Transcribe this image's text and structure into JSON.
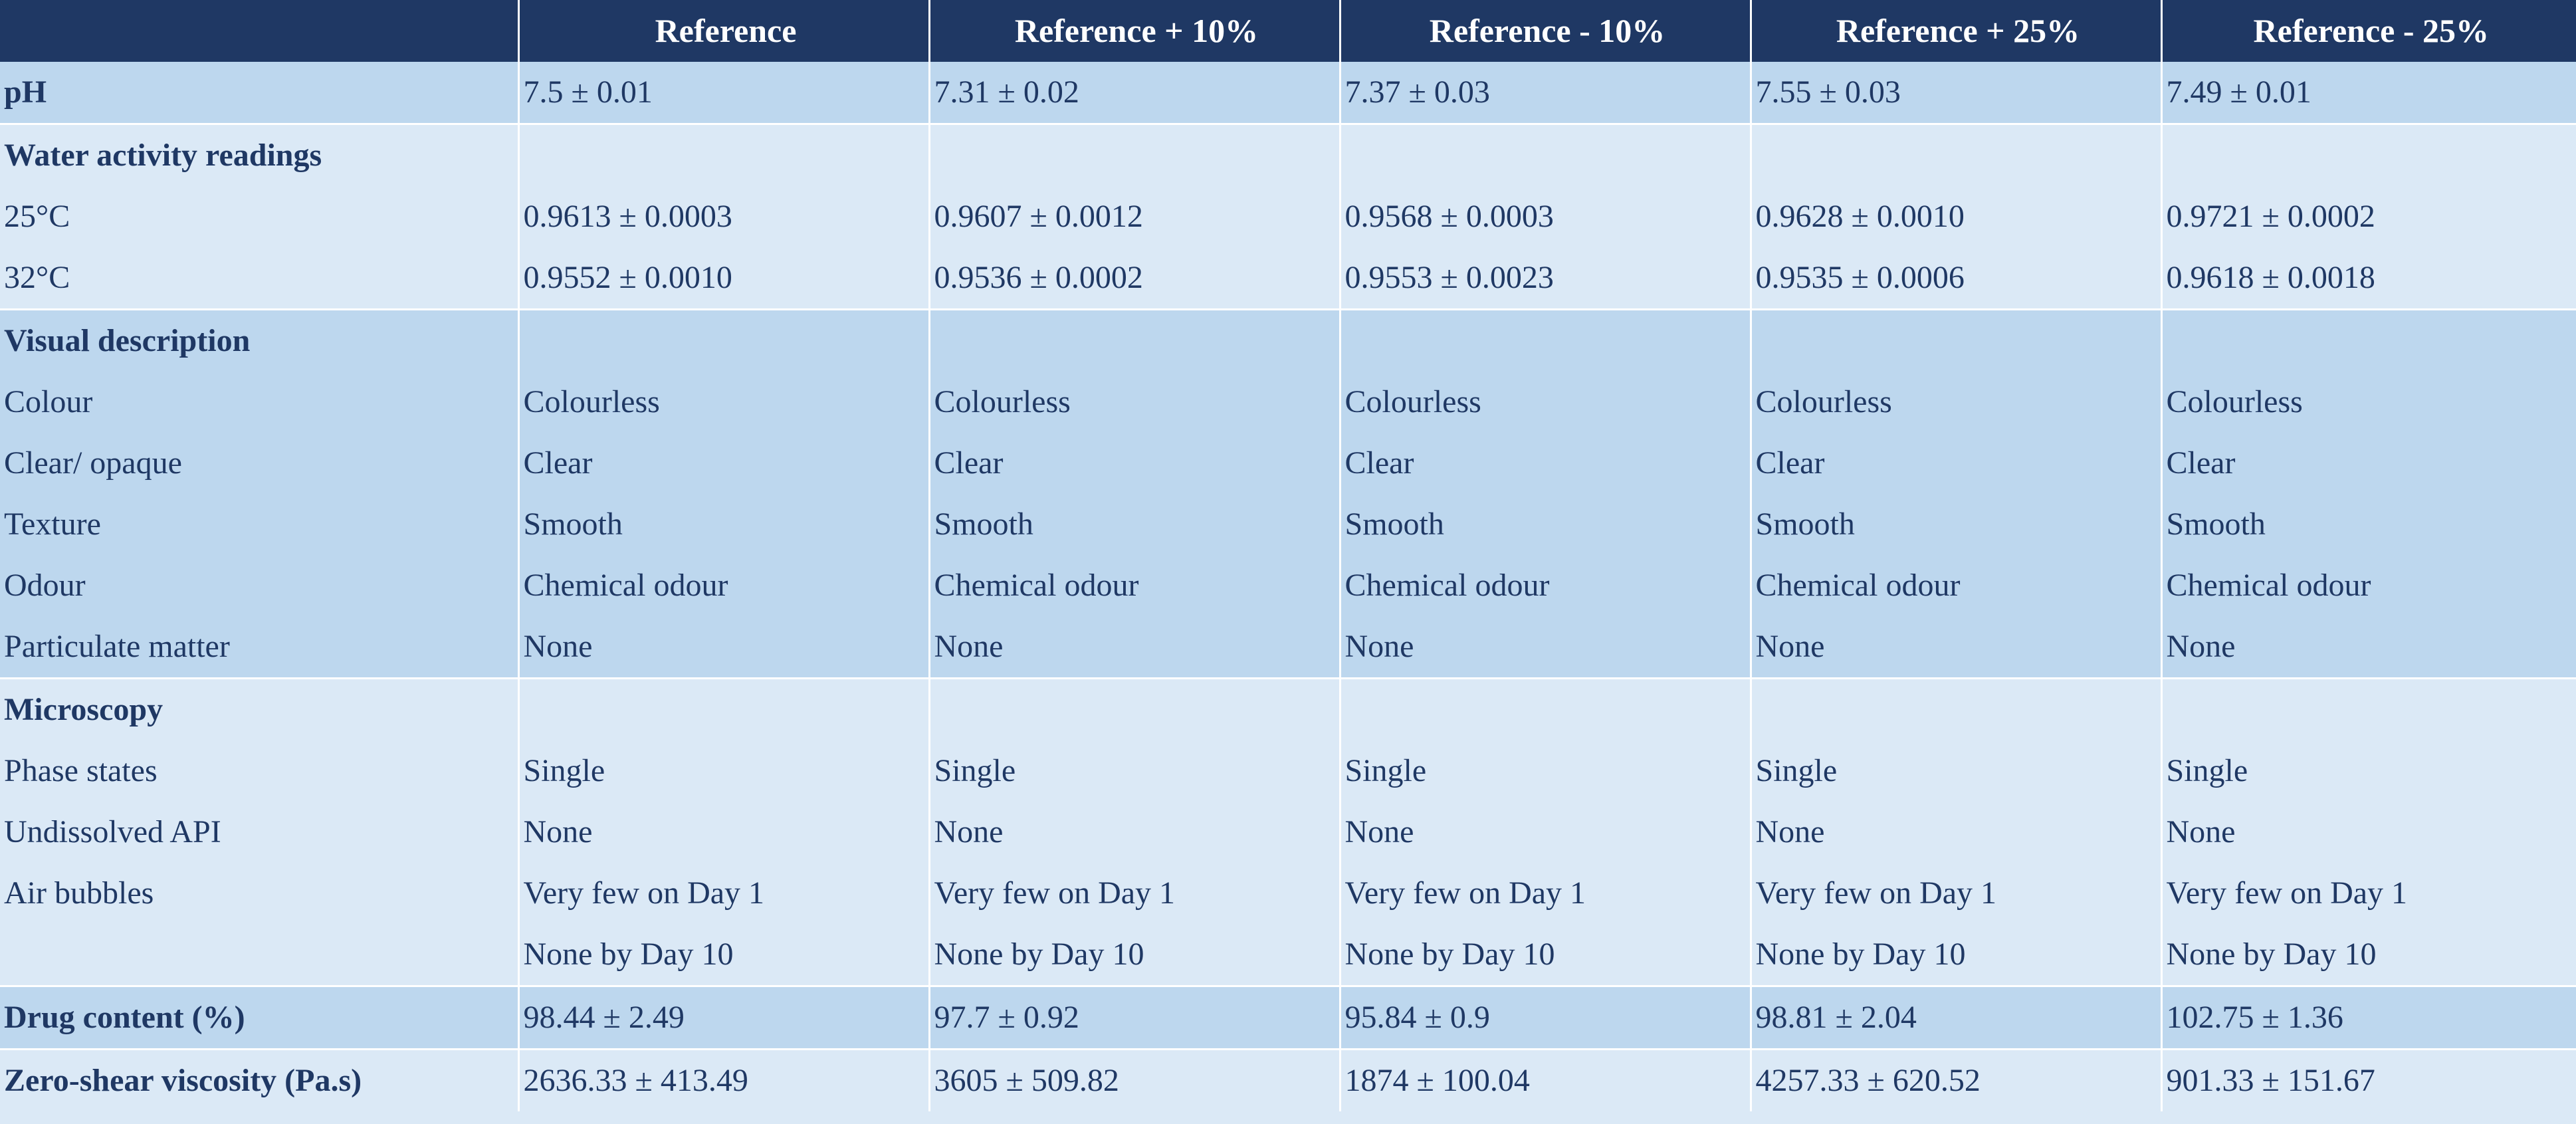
{
  "header": [
    "",
    "Reference",
    "Reference + 10%",
    "Reference - 10%",
    "Reference + 25%",
    "Reference - 25%"
  ],
  "rows": [
    {
      "label": "pH",
      "strong": true,
      "shade": "dark",
      "group_start": false,
      "values": [
        "7.5 ± 0.01",
        "7.31 ± 0.02",
        "7.37 ± 0.03",
        "7.55 ± 0.03",
        "7.49 ± 0.01"
      ]
    },
    {
      "label": "Water activity readings",
      "strong": true,
      "shade": "light",
      "group_start": true,
      "values": [
        "",
        "",
        "",
        "",
        ""
      ]
    },
    {
      "label": "25°C",
      "strong": false,
      "shade": "light",
      "group_start": false,
      "values": [
        "0.9613 ± 0.0003",
        "0.9607 ± 0.0012",
        "0.9568 ± 0.0003",
        "0.9628 ± 0.0010",
        "0.9721 ± 0.0002"
      ]
    },
    {
      "label": "32°C",
      "strong": false,
      "shade": "light",
      "group_start": false,
      "values": [
        "0.9552 ± 0.0010",
        "0.9536 ± 0.0002",
        "0.9553 ± 0.0023",
        "0.9535 ± 0.0006",
        "0.9618 ± 0.0018"
      ]
    },
    {
      "label": "Visual description",
      "strong": true,
      "shade": "dark",
      "group_start": true,
      "values": [
        "",
        "",
        "",
        "",
        ""
      ]
    },
    {
      "label": "Colour",
      "strong": false,
      "shade": "dark",
      "group_start": false,
      "values": [
        "Colourless",
        "Colourless",
        "Colourless",
        "Colourless",
        "Colourless"
      ]
    },
    {
      "label": "Clear/ opaque",
      "strong": false,
      "shade": "dark",
      "group_start": false,
      "values": [
        "Clear",
        "Clear",
        "Clear",
        "Clear",
        "Clear"
      ]
    },
    {
      "label": "Texture",
      "strong": false,
      "shade": "dark",
      "group_start": false,
      "values": [
        "Smooth",
        "Smooth",
        "Smooth",
        "Smooth",
        "Smooth"
      ]
    },
    {
      "label": "Odour",
      "strong": false,
      "shade": "dark",
      "group_start": false,
      "values": [
        "Chemical odour",
        "Chemical odour",
        "Chemical odour",
        "Chemical odour",
        "Chemical odour"
      ]
    },
    {
      "label": "Particulate matter",
      "strong": false,
      "shade": "dark",
      "group_start": false,
      "values": [
        "None",
        "None",
        "None",
        "None",
        "None"
      ]
    },
    {
      "label": "Microscopy",
      "strong": true,
      "shade": "light",
      "group_start": true,
      "values": [
        "",
        "",
        "",
        "",
        ""
      ]
    },
    {
      "label": "Phase states",
      "strong": false,
      "shade": "light",
      "group_start": false,
      "values": [
        "Single",
        "Single",
        "Single",
        "Single",
        "Single"
      ]
    },
    {
      "label": "Undissolved API",
      "strong": false,
      "shade": "light",
      "group_start": false,
      "values": [
        "None",
        "None",
        "None",
        "None",
        "None"
      ]
    },
    {
      "label": "Air bubbles",
      "strong": false,
      "shade": "light",
      "group_start": false,
      "values": [
        "Very few on Day 1",
        "Very few on Day 1",
        "Very few on Day 1",
        "Very few on Day 1",
        "Very few on Day 1"
      ]
    },
    {
      "label": "",
      "strong": false,
      "shade": "light",
      "group_start": false,
      "values": [
        "None by Day 10",
        "None by Day 10",
        "None by Day 10",
        "None by Day 10",
        "None by Day 10"
      ]
    },
    {
      "label": "Drug content (%)",
      "strong": true,
      "shade": "dark",
      "group_start": true,
      "values": [
        "98.44 ± 2.49",
        "97.7 ± 0.92",
        "95.84 ± 0.9",
        "98.81 ± 2.04",
        "102.75 ± 1.36"
      ]
    },
    {
      "label": "Zero-shear viscosity (Pa.s)",
      "strong": true,
      "shade": "light",
      "group_start": true,
      "values": [
        "2636.33 ± 413.49",
        "3605 ± 509.82",
        "1874 ± 100.04",
        "4257.33 ± 620.52",
        "901.33 ± 151.67"
      ]
    }
  ]
}
